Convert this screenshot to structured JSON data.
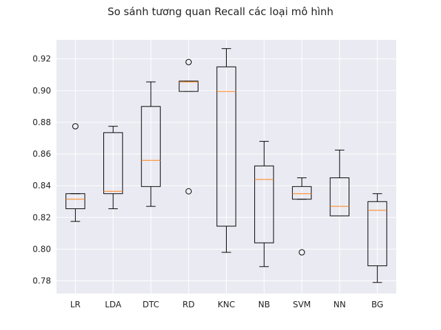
{
  "chart_data": {
    "type": "box",
    "title": "So sánh tương quan Recall các loại mô hình",
    "xlabel": "",
    "ylabel": "",
    "ylim": [
      0.772,
      0.932
    ],
    "yticks": [
      0.78,
      0.8,
      0.82,
      0.84,
      0.86,
      0.88,
      0.9,
      0.92
    ],
    "grid": true,
    "colors": {
      "background": "#eaeaf2",
      "grid": "#ffffff",
      "box": "#000000",
      "median": "#ff7f0e",
      "figure": "#ffffff"
    },
    "series": [
      {
        "name": "LR",
        "whisker_low": 0.8175,
        "q1": 0.8255,
        "median": 0.8315,
        "q3": 0.835,
        "whisker_high": 0.835,
        "outliers": [
          0.8775
        ]
      },
      {
        "name": "LDA",
        "whisker_low": 0.8255,
        "q1": 0.835,
        "median": 0.8365,
        "q3": 0.8735,
        "whisker_high": 0.8775,
        "outliers": []
      },
      {
        "name": "DTC",
        "whisker_low": 0.827,
        "q1": 0.8395,
        "median": 0.856,
        "q3": 0.89,
        "whisker_high": 0.9055,
        "outliers": []
      },
      {
        "name": "RD",
        "whisker_low": 0.8995,
        "q1": 0.8995,
        "median": 0.9055,
        "q3": 0.906,
        "whisker_high": 0.906,
        "outliers": [
          0.918,
          0.8365
        ]
      },
      {
        "name": "KNC",
        "whisker_low": 0.798,
        "q1": 0.8145,
        "median": 0.8995,
        "q3": 0.915,
        "whisker_high": 0.9265,
        "outliers": []
      },
      {
        "name": "NB",
        "whisker_low": 0.789,
        "q1": 0.804,
        "median": 0.844,
        "q3": 0.8525,
        "whisker_high": 0.868,
        "outliers": []
      },
      {
        "name": "SVM",
        "whisker_low": 0.8315,
        "q1": 0.8315,
        "median": 0.835,
        "q3": 0.8395,
        "whisker_high": 0.845,
        "outliers": [
          0.798
        ]
      },
      {
        "name": "NN",
        "whisker_low": 0.821,
        "q1": 0.821,
        "median": 0.827,
        "q3": 0.845,
        "whisker_high": 0.8625,
        "outliers": []
      },
      {
        "name": "BG",
        "whisker_low": 0.779,
        "q1": 0.7895,
        "median": 0.8245,
        "q3": 0.83,
        "whisker_high": 0.835,
        "outliers": []
      }
    ]
  }
}
